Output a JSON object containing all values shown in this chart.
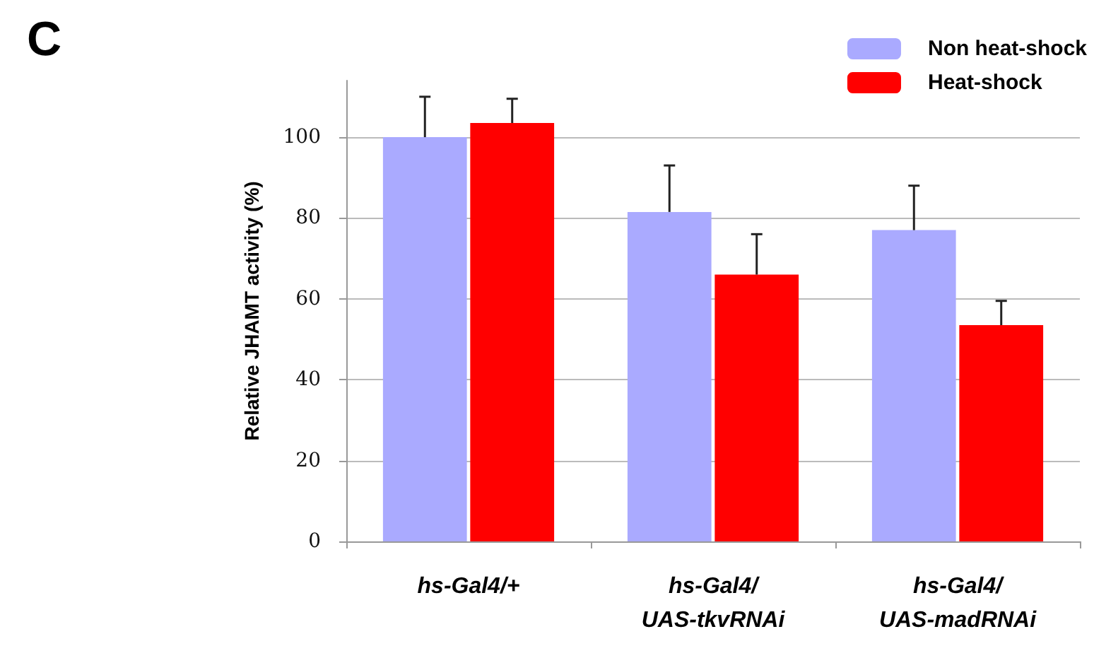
{
  "chart_data": {
    "type": "bar",
    "title": "C",
    "ylabel": "Relative JHAMT activity (%)",
    "categories": [
      "hs-Gal4/+",
      "hs-Gal4/\nUAS-tkvRNAi",
      "hs-Gal4/\nUAS-madRNAi"
    ],
    "series": [
      {
        "name": "Non heat-shock",
        "color": "#aaaaff",
        "values": [
          100,
          81.5,
          77
        ],
        "errors": [
          [
            100,
            110
          ],
          [
            81.5,
            93
          ],
          [
            77,
            88
          ]
        ]
      },
      {
        "name": "Heat-shock",
        "color": "#ff0000",
        "values": [
          103.5,
          66,
          53.5
        ],
        "errors": [
          [
            103.5,
            109.5
          ],
          [
            66,
            76
          ],
          [
            53.5,
            59.5
          ]
        ]
      }
    ],
    "ylim": [
      0,
      114
    ],
    "yticks": [
      0,
      20,
      40,
      60,
      80,
      100
    ],
    "grid": "y",
    "legend": "top right"
  }
}
